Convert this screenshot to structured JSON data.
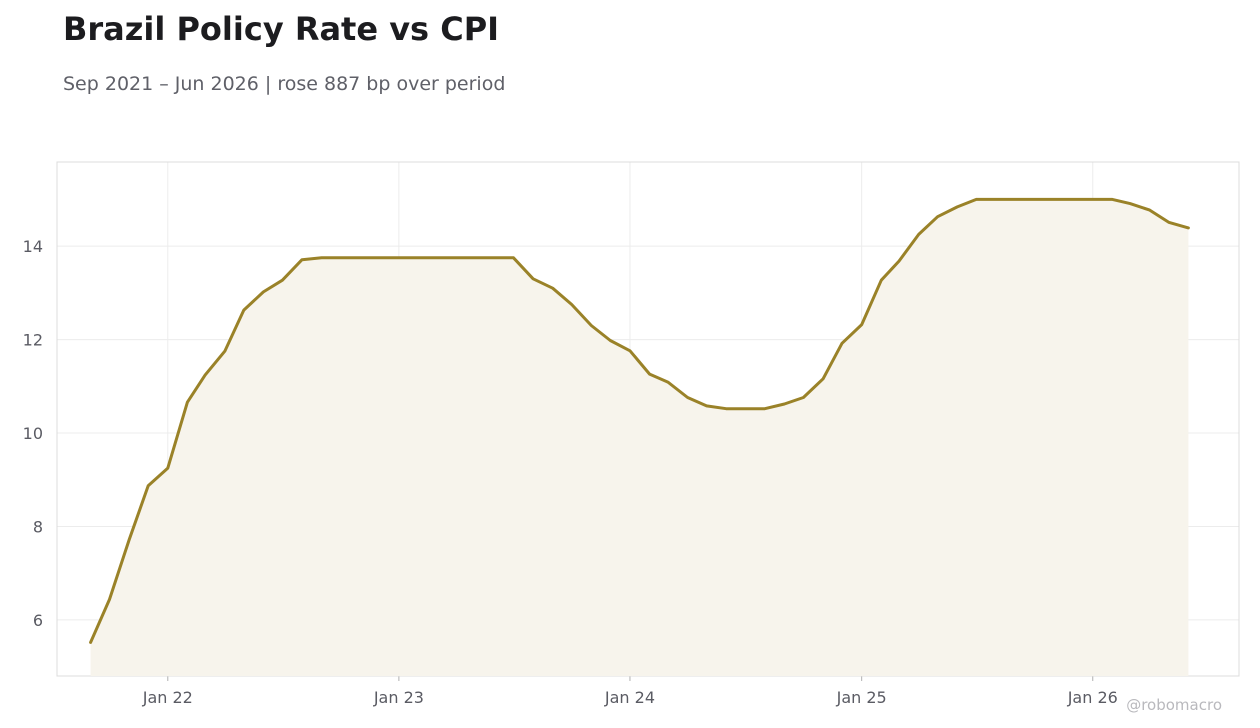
{
  "header": {
    "title": "Brazil Policy Rate vs CPI",
    "subtitle": "Sep 2021 – Jun 2026 | rose 887 bp over period"
  },
  "watermark": "@robomacro",
  "colors": {
    "line": "#9a8228",
    "fill": "#f7f4ec",
    "grid": "#ececec",
    "frame": "#dcdcdc"
  },
  "chart_data": {
    "type": "area",
    "title": "Brazil Policy Rate vs CPI",
    "subtitle": "Sep 2021 – Jun 2026 | rose 887 bp over period",
    "xlabel": "",
    "ylabel": "",
    "x_ticks": [
      "Jan 22",
      "Jan 23",
      "Jan 24",
      "Jan 25",
      "Jan 26"
    ],
    "y_ticks": [
      6,
      8,
      10,
      12,
      14
    ],
    "ylim": [
      4.8,
      15.8
    ],
    "xlim": [
      "2021-07-10",
      "2026-08-20"
    ],
    "grid": true,
    "legend": "none",
    "series": [
      {
        "x": [
          "2021-09",
          "2021-10",
          "2021-11",
          "2021-12",
          "2022-01",
          "2022-02",
          "2022-03",
          "2022-04",
          "2022-05",
          "2022-06",
          "2022-07",
          "2022-08",
          "2022-09",
          "2022-10",
          "2022-11",
          "2022-12",
          "2023-01",
          "2023-02",
          "2023-03",
          "2023-04",
          "2023-05",
          "2023-06",
          "2023-07",
          "2023-08",
          "2023-09",
          "2023-10",
          "2023-11",
          "2023-12",
          "2024-01",
          "2024-02",
          "2024-03",
          "2024-04",
          "2024-05",
          "2024-06",
          "2024-07",
          "2024-08",
          "2024-09",
          "2024-10",
          "2024-11",
          "2024-12",
          "2025-01",
          "2025-02",
          "2025-03",
          "2025-04",
          "2025-05",
          "2025-06",
          "2025-07",
          "2025-08",
          "2025-09",
          "2025-10",
          "2025-11",
          "2025-12",
          "2026-01",
          "2026-02",
          "2026-03",
          "2026-04",
          "2026-05",
          "2026-06"
        ],
        "values": [
          5.52,
          6.44,
          7.72,
          8.87,
          9.25,
          10.66,
          11.24,
          11.75,
          12.63,
          13.02,
          13.27,
          13.71,
          13.75,
          13.75,
          13.75,
          13.75,
          13.75,
          13.75,
          13.75,
          13.75,
          13.75,
          13.75,
          13.75,
          13.3,
          13.1,
          12.75,
          12.3,
          11.98,
          11.76,
          11.26,
          11.09,
          10.76,
          10.58,
          10.52,
          10.52,
          10.52,
          10.62,
          10.76,
          11.16,
          11.92,
          12.32,
          13.27,
          13.68,
          14.25,
          14.63,
          14.84,
          15.0,
          15.0,
          15.0,
          15.0,
          15.0,
          15.0,
          15.0,
          15.0,
          14.91,
          14.77,
          14.51,
          14.39
        ]
      }
    ]
  }
}
